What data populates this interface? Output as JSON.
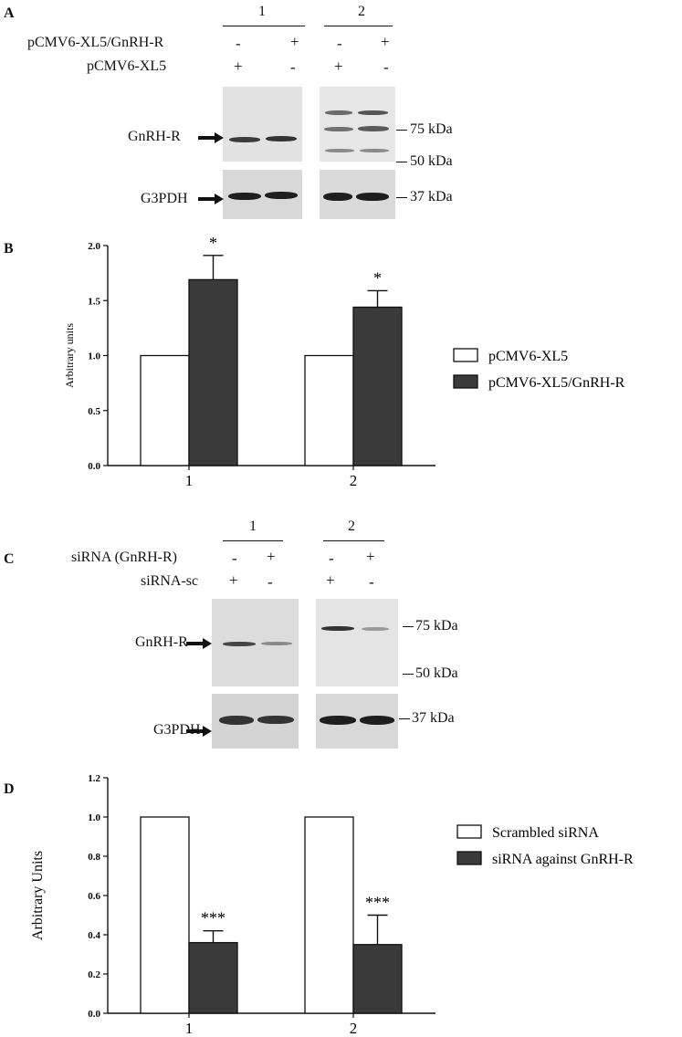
{
  "panels": {
    "a": {
      "letter": "A",
      "groups": [
        "1",
        "2"
      ],
      "row1_label": "pCMV6-XL5/GnRH-R",
      "row2_label": "pCMV6-XL5",
      "row1_signs": [
        "-",
        "+",
        "-",
        "+"
      ],
      "row2_signs": [
        "+",
        "-",
        "+",
        "-"
      ],
      "protein1": "GnRH-R",
      "protein2": "G3PDH",
      "markers": [
        "75 kDa",
        "50 kDa",
        "37 kDa"
      ]
    },
    "c": {
      "letter": "C",
      "groups": [
        "1",
        "2"
      ],
      "row1_label": "siRNA (GnRH-R)",
      "row2_label": "siRNA-sc",
      "row1_signs": [
        "-",
        "+",
        "-",
        "+"
      ],
      "row2_signs": [
        "+",
        "-",
        "+",
        "-"
      ],
      "protein1": "GnRH-R",
      "protein2": "G3PDH",
      "markers": [
        "75 kDa",
        "50 kDa",
        "37 kDa"
      ]
    },
    "b_letter": "B",
    "d_letter": "D"
  },
  "colors": {
    "open_bar": "#ffffff",
    "filled_bar": "#3a3a3a",
    "axis": "#111111"
  },
  "chart_data": [
    {
      "type": "bar",
      "panel": "B",
      "categories": [
        "1",
        "2"
      ],
      "ylabel": "Arbitrary units",
      "ylim": [
        0,
        2.0
      ],
      "yticks": [
        "0.0",
        "0.5",
        "1.0",
        "1.5",
        "2.0"
      ],
      "series": [
        {
          "name": "pCMV6-XL5",
          "values": [
            1.0,
            1.0
          ],
          "errors": [
            0,
            0
          ],
          "annotations": [
            "",
            ""
          ]
        },
        {
          "name": "pCMV6-XL5/GnRH-R",
          "values": [
            1.69,
            1.44
          ],
          "errors": [
            0.22,
            0.15
          ],
          "annotations": [
            "*",
            "*"
          ]
        }
      ],
      "legend_position": "right"
    },
    {
      "type": "bar",
      "panel": "D",
      "categories": [
        "1",
        "2"
      ],
      "ylabel": "Arbitrary Units",
      "ylim": [
        0,
        1.2
      ],
      "yticks": [
        "0.0",
        "0.2",
        "0.4",
        "0.6",
        "0.8",
        "1.0",
        "1.2"
      ],
      "series": [
        {
          "name": "Scrambled siRNA",
          "values": [
            1.0,
            1.0
          ],
          "errors": [
            0,
            0
          ],
          "annotations": [
            "",
            ""
          ]
        },
        {
          "name": "siRNA against GnRH-R",
          "values": [
            0.36,
            0.35
          ],
          "errors": [
            0.06,
            0.15
          ],
          "annotations": [
            "***",
            "***"
          ]
        }
      ],
      "legend_position": "right"
    }
  ]
}
